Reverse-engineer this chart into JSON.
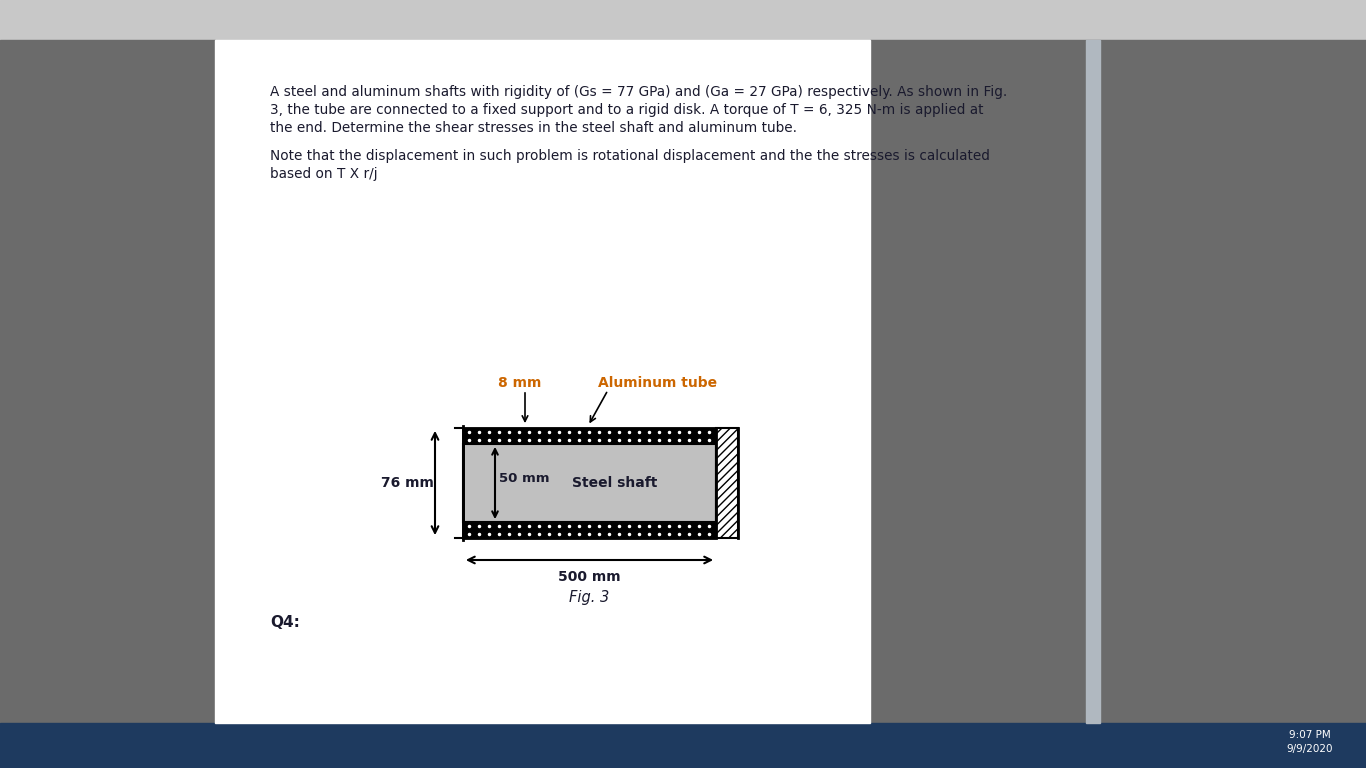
{
  "title_line1": "A steel and aluminum shafts with rigidity of (Gs = 77 GPa) and (Ga = 27 GPa) respectively. As shown in Fig.",
  "title_line2": "3, the tube are connected to a fixed support and to a rigid disk. A torque of T = 6, 325 N-m is applied at",
  "title_line3": "the end. Determine the shear stresses in the steel shaft and aluminum tube.",
  "note_line1": "Note that the displacement in such problem is rotational displacement and the the stresses is calculated",
  "note_line2": "based on T X r/j",
  "label_8mm": "8 mm",
  "label_aluminum": "Aluminum tube",
  "label_76mm": "76 mm",
  "label_50mm": "50 mm",
  "label_steel": "Steel shaft",
  "label_500mm": "500 mm",
  "label_fig": "Fig. 3",
  "label_q4": "Q4:",
  "bg_color": "#ffffff",
  "left_panel_color": "#6b6b6b",
  "right_panel_color": "#6b6b6b",
  "top_bar_color": "#c8c8c8",
  "bottom_bar_color": "#d0d8e0",
  "text_color": "#1a1a2e",
  "label_color": "#cc6600",
  "steel_fill": "#c0c0c0",
  "taskbar_color": "#1e3a5f"
}
